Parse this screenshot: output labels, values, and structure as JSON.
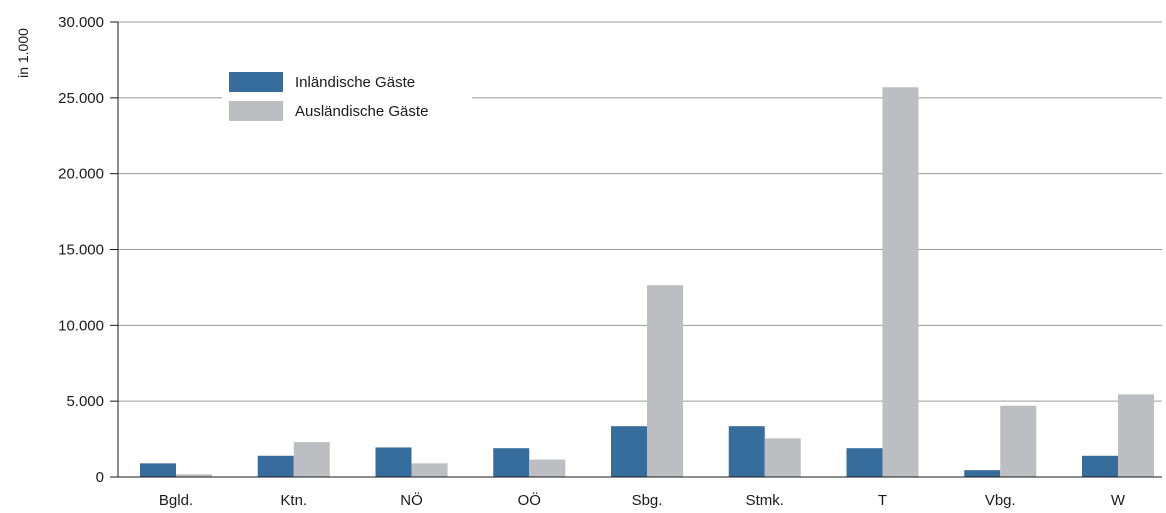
{
  "chart_data": {
    "type": "bar",
    "title": "",
    "xlabel": "",
    "ylabel": "in 1.000",
    "ylim": [
      0,
      30000
    ],
    "yticks": [
      0,
      5000,
      10000,
      15000,
      20000,
      25000,
      30000
    ],
    "ytick_labels": [
      "0",
      "5.000",
      "10.000",
      "15.000",
      "20.000",
      "25.000",
      "30.000"
    ],
    "grid": true,
    "legend_position": "top-left",
    "categories": [
      "Bgld.",
      "Ktn.",
      "NÖ",
      "OÖ",
      "Sbg.",
      "Stmk.",
      "T",
      "Vbg.",
      "W"
    ],
    "series": [
      {
        "name": "Inländische Gäste",
        "color": "#376d9c",
        "values": [
          900,
          1400,
          1950,
          1900,
          3350,
          3350,
          1900,
          450,
          1400
        ]
      },
      {
        "name": "Ausländische Gäste",
        "color": "#bcbec2",
        "values": [
          180,
          2300,
          900,
          1150,
          12650,
          2550,
          25700,
          4700,
          5450
        ]
      }
    ]
  }
}
